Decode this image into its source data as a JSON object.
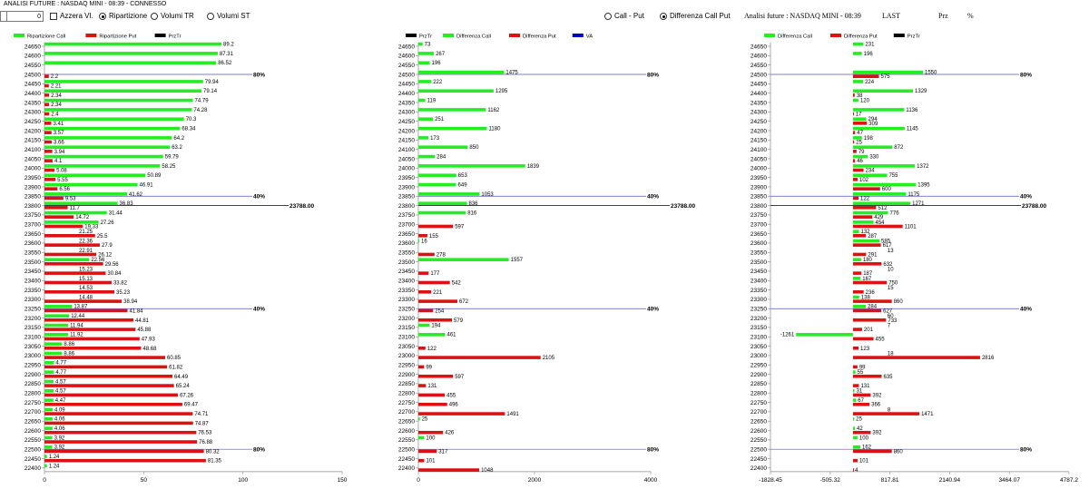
{
  "window": {
    "title": "ANALISI FUTURE : NASDAQ MINI - 08:39 - CONNESSO"
  },
  "controls": {
    "spin_value": "0",
    "azzera_label": "Azzera VI.",
    "radio_ripartizione": "Ripartizione",
    "radio_volumi_tr": "Volumi TR",
    "radio_volumi_st": "Volumi ST",
    "radio_call_put": "Call - Put",
    "radio_diff_call_put": "Differenza Call Put",
    "selected_mode": "Ripartizione",
    "selected_diff": "Differenza Call Put"
  },
  "info": {
    "analisi": "Analisi future : NASDAQ MINI - 08:39",
    "last_label": "LAST",
    "prz_label": "Prz",
    "pct_label": "%"
  },
  "colors": {
    "call": "#22ee22",
    "put": "#dd1111",
    "przTr": "#000000",
    "va": "#0000cc",
    "line": "#5555bb"
  },
  "strikes": [
    24650,
    24600,
    24550,
    24500,
    24450,
    24400,
    24350,
    24300,
    24250,
    24200,
    24150,
    24100,
    24050,
    24000,
    23950,
    23900,
    23850,
    23800,
    23750,
    23700,
    23650,
    23600,
    23550,
    23500,
    23450,
    23400,
    23350,
    23300,
    23250,
    23200,
    23150,
    23100,
    23050,
    23000,
    22950,
    22900,
    22850,
    22800,
    22750,
    22700,
    22650,
    22600,
    22550,
    22500,
    22450,
    22400
  ],
  "marker_lines": [
    {
      "strike": 24500,
      "label": "80%"
    },
    {
      "strike": 23850,
      "label": "40%"
    },
    {
      "strike": 23250,
      "label": "40%"
    },
    {
      "strike": 22500,
      "label": "80%"
    }
  ],
  "last_line": {
    "strike": 23800,
    "label": "23788.00"
  },
  "chart_data": [
    {
      "type": "bar",
      "name": "Ripartizione",
      "legend": [
        "Ripartizione Call",
        "Ripartizione Put",
        "PrzTr"
      ],
      "xlim": [
        0,
        150
      ],
      "xticks": [
        "0",
        "50",
        "100",
        "150"
      ],
      "call": [
        89.2,
        87.31,
        86.52,
        null,
        79.94,
        79.14,
        74.79,
        74.28,
        70.3,
        68.34,
        64.2,
        63.2,
        59.79,
        58.25,
        50.89,
        46.91,
        41.62,
        36.83,
        31.44,
        27.26,
        null,
        null,
        null,
        22.56,
        null,
        null,
        null,
        null,
        13.87,
        12.44,
        11.94,
        11.92,
        8.86,
        8.86,
        4.77,
        4.77,
        4.57,
        4.57,
        4.47,
        4.09,
        4.06,
        4.06,
        3.92,
        3.92,
        1.24,
        1.24
      ],
      "put": [
        null,
        null,
        null,
        2.2,
        2.21,
        2.34,
        2.34,
        2.4,
        3.41,
        3.57,
        3.66,
        3.94,
        4.1,
        5.08,
        5.55,
        6.56,
        9.53,
        11.7,
        14.72,
        19.33,
        25.5,
        27.9,
        26.12,
        29.56,
        30.84,
        33.82,
        35.23,
        38.94,
        41.84,
        44.81,
        45.88,
        47.93,
        48.68,
        60.85,
        61.82,
        64.49,
        65.24,
        67.26,
        69.47,
        74.71,
        74.87,
        76.53,
        76.88,
        80.32,
        81.35,
        null
      ],
      "extra_labels": [
        {
          "strike": 23650,
          "text": "21.25"
        },
        {
          "strike": 23600,
          "text": "22.36"
        },
        {
          "strike": 23550,
          "text": "22.91"
        },
        {
          "strike": 23450,
          "text": "15.23"
        },
        {
          "strike": 23400,
          "text": "15.13"
        },
        {
          "strike": 23350,
          "text": "14.53"
        },
        {
          "strike": 23300,
          "text": "14.48"
        }
      ]
    },
    {
      "type": "bar",
      "name": "Differenza",
      "legend": [
        "PrzTr",
        "Differenza Call",
        "Differenza Put",
        "VA"
      ],
      "xlim": [
        0,
        4000
      ],
      "xticks": [
        "0",
        "2000",
        "4000"
      ],
      "call": [
        73,
        267,
        196,
        1475,
        222,
        1295,
        119,
        1162,
        251,
        1180,
        173,
        850,
        284,
        1839,
        653,
        649,
        1053,
        836,
        816,
        null,
        null,
        16,
        null,
        1557,
        null,
        null,
        null,
        null,
        null,
        null,
        194,
        461,
        null,
        null,
        null,
        null,
        null,
        null,
        null,
        null,
        25,
        null,
        100,
        null,
        null,
        null
      ],
      "put": [
        null,
        null,
        null,
        null,
        null,
        null,
        null,
        null,
        null,
        null,
        null,
        null,
        null,
        null,
        null,
        null,
        null,
        null,
        null,
        597,
        155,
        null,
        278,
        null,
        177,
        542,
        221,
        672,
        254,
        579,
        null,
        null,
        122,
        2105,
        99,
        597,
        131,
        455,
        496,
        1491,
        null,
        426,
        null,
        317,
        101,
        1048
      ]
    },
    {
      "type": "bar",
      "name": "Differenza Call Put",
      "legend": [
        "Differenza Call",
        "Differenza Put",
        "PrzTr"
      ],
      "xlim": [
        -1828.45,
        4787.2
      ],
      "xticks": [
        "-1828.45",
        "-505.32",
        "817.81",
        "2140.94",
        "3464.07",
        "4787.2"
      ],
      "call": [
        231,
        196,
        null,
        1550,
        224,
        1329,
        120,
        1136,
        294,
        1145,
        198,
        872,
        330,
        1372,
        755,
        1395,
        1175,
        1271,
        776,
        454,
        132,
        585,
        null,
        180,
        null,
        167,
        null,
        138,
        284,
        null,
        null,
        -1261,
        null,
        null,
        null,
        55,
        null,
        31,
        67,
        null,
        25,
        42,
        100,
        162,
        null,
        null
      ],
      "put": [
        null,
        null,
        null,
        575,
        null,
        38,
        null,
        17,
        309,
        47,
        25,
        79,
        46,
        234,
        102,
        600,
        122,
        512,
        429,
        1101,
        287,
        617,
        291,
        632,
        187,
        750,
        236,
        860,
        627,
        733,
        201,
        455,
        123,
        2816,
        99,
        635,
        131,
        392,
        366,
        1471,
        null,
        392,
        null,
        860,
        101,
        4
      ],
      "extra_labels": [
        {
          "strike": 23550,
          "text": "13"
        },
        {
          "strike": 23450,
          "text": "10"
        },
        {
          "strike": 23350,
          "text": "15"
        },
        {
          "strike": 23200,
          "text": "60"
        },
        {
          "strike": 23150,
          "text": "7"
        },
        {
          "strike": 23000,
          "text": "18"
        },
        {
          "strike": 22700,
          "text": "8"
        }
      ]
    }
  ]
}
